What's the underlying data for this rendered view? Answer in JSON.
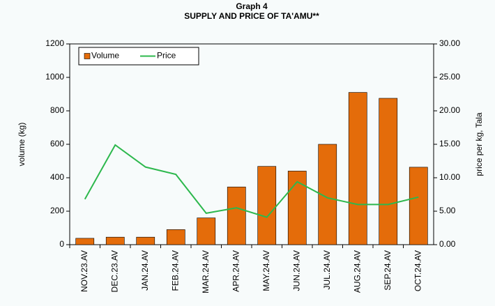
{
  "chart_data": {
    "type": "bar",
    "title": "Graph 4",
    "subtitle": "SUPPLY AND PRICE OF TA'AMU**",
    "ylabel": "volume (kg)",
    "y2label": "price per kg, Tala",
    "categories": [
      "NOV.23.AV",
      "DEC.23.AV",
      "JAN.24.AV",
      "FEB.24.AV",
      "MAR.24.AV",
      "APR.24.AV",
      "MAY.24.AV",
      "JUN.24.AV",
      "JUL.24.AV",
      "AUG.24.AV",
      "SEP.24.AV",
      "OCT.24.AV"
    ],
    "series": [
      {
        "name": "Volume",
        "type": "bar",
        "color": "#e46c0a",
        "values": [
          38,
          45,
          45,
          90,
          160,
          345,
          468,
          440,
          600,
          910,
          875,
          463
        ]
      },
      {
        "name": "Price",
        "type": "line",
        "axis": "y2",
        "color": "#2db84d",
        "values": [
          6.8,
          14.9,
          11.6,
          10.5,
          4.7,
          5.5,
          4.1,
          9.4,
          7.0,
          6.0,
          6.0,
          7.1
        ]
      }
    ],
    "ylim": [
      0,
      1200
    ],
    "yticks": [
      0,
      200,
      400,
      600,
      800,
      1000,
      1200
    ],
    "y2lim": [
      0,
      30
    ],
    "y2ticks": [
      {
        "value": 0,
        "label": "0.00"
      },
      {
        "value": 5,
        "label": "5.00"
      },
      {
        "value": 10,
        "label": "10.00"
      },
      {
        "value": 15,
        "label": "15.00"
      },
      {
        "value": 20,
        "label": "20.00"
      },
      {
        "value": 25,
        "label": "25.00"
      },
      {
        "value": 30,
        "label": "30.00"
      }
    ],
    "legend": "top-left",
    "grid": false
  }
}
